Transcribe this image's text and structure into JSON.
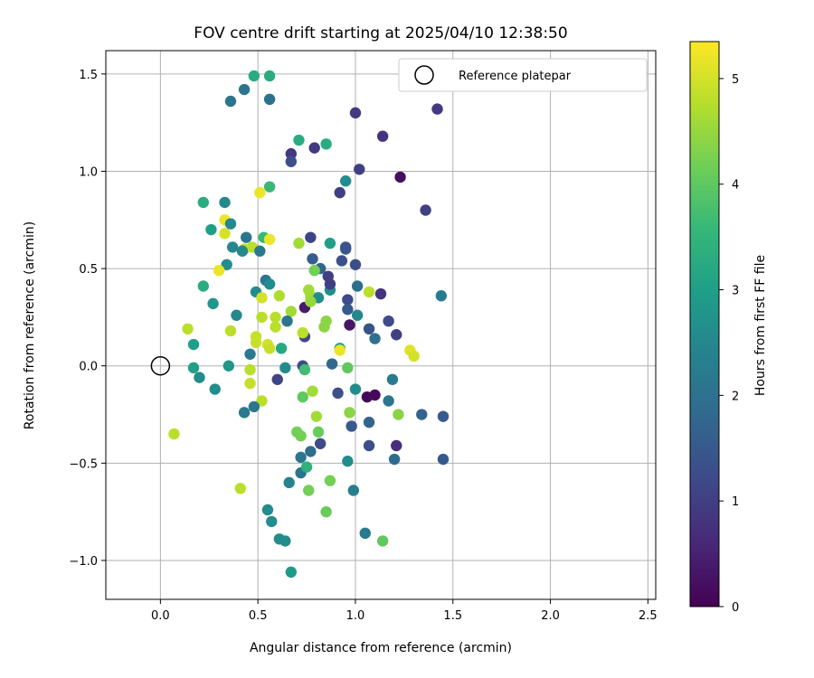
{
  "chart_data": {
    "type": "scatter",
    "title": "FOV centre drift starting at 2025/04/10 12:38:50",
    "xlabel": "Angular distance from reference (arcmin)",
    "ylabel": "Rotation from reference (arcmin)",
    "xlim": [
      -0.28,
      2.54
    ],
    "ylim": [
      -1.2,
      1.62
    ],
    "xticks": [
      0.0,
      0.5,
      1.0,
      1.5,
      2.0,
      2.5
    ],
    "xtick_labels": [
      "0.0",
      "0.5",
      "1.0",
      "1.5",
      "2.0",
      "2.5"
    ],
    "yticks": [
      -1.0,
      -0.5,
      0.0,
      0.5,
      1.0,
      1.5
    ],
    "ytick_labels": [
      "−1.0",
      "−0.5",
      "0.0",
      "0.5",
      "1.0",
      "1.5"
    ],
    "grid": true,
    "legend": {
      "position": "top-right",
      "label": "Reference platepar"
    },
    "reference_point": {
      "x": 0.0,
      "y": 0.0
    },
    "colorbar": {
      "label": "Hours from first FF file",
      "colormap": "viridis",
      "range": [
        0,
        5.35
      ],
      "ticks": [
        0,
        1,
        2,
        3,
        4,
        5
      ],
      "tick_labels": [
        "0",
        "1",
        "2",
        "3",
        "4",
        "5"
      ]
    },
    "points": [
      {
        "x": 0.36,
        "y": 1.36,
        "h": 2.1
      },
      {
        "x": 0.43,
        "y": 1.42,
        "h": 2.1
      },
      {
        "x": 0.48,
        "y": 1.49,
        "h": 3.3
      },
      {
        "x": 0.56,
        "y": 1.49,
        "h": 3.3
      },
      {
        "x": 0.56,
        "y": 1.37,
        "h": 2.0
      },
      {
        "x": 0.71,
        "y": 1.16,
        "h": 3.3
      },
      {
        "x": 0.67,
        "y": 1.09,
        "h": 0.9
      },
      {
        "x": 0.67,
        "y": 1.05,
        "h": 1.3
      },
      {
        "x": 0.79,
        "y": 1.12,
        "h": 0.9
      },
      {
        "x": 0.85,
        "y": 1.14,
        "h": 3.3
      },
      {
        "x": 1.0,
        "y": 1.3,
        "h": 0.9
      },
      {
        "x": 1.14,
        "y": 1.18,
        "h": 0.8
      },
      {
        "x": 1.42,
        "y": 1.32,
        "h": 0.9
      },
      {
        "x": 1.23,
        "y": 0.97,
        "h": 0.2
      },
      {
        "x": 1.02,
        "y": 1.01,
        "h": 1.0
      },
      {
        "x": 0.95,
        "y": 0.95,
        "h": 2.6
      },
      {
        "x": 0.92,
        "y": 0.89,
        "h": 1.0
      },
      {
        "x": 1.36,
        "y": 0.8,
        "h": 1.0
      },
      {
        "x": 0.56,
        "y": 0.92,
        "h": 3.6
      },
      {
        "x": 0.51,
        "y": 0.89,
        "h": 5.2
      },
      {
        "x": 0.22,
        "y": 0.84,
        "h": 3.3
      },
      {
        "x": 0.33,
        "y": 0.84,
        "h": 2.5
      },
      {
        "x": 0.33,
        "y": 0.75,
        "h": 5.2
      },
      {
        "x": 0.36,
        "y": 0.73,
        "h": 2.5
      },
      {
        "x": 0.26,
        "y": 0.7,
        "h": 3.0
      },
      {
        "x": 0.33,
        "y": 0.68,
        "h": 5.0
      },
      {
        "x": 0.44,
        "y": 0.66,
        "h": 2.1
      },
      {
        "x": 0.53,
        "y": 0.66,
        "h": 3.6
      },
      {
        "x": 0.56,
        "y": 0.65,
        "h": 5.2
      },
      {
        "x": 0.37,
        "y": 0.61,
        "h": 2.5
      },
      {
        "x": 0.43,
        "y": 0.6,
        "h": 4.8
      },
      {
        "x": 0.47,
        "y": 0.61,
        "h": 4.8
      },
      {
        "x": 0.42,
        "y": 0.59,
        "h": 2.5
      },
      {
        "x": 0.51,
        "y": 0.59,
        "h": 2.2
      },
      {
        "x": 0.71,
        "y": 0.63,
        "h": 4.6
      },
      {
        "x": 0.77,
        "y": 0.66,
        "h": 1.1
      },
      {
        "x": 0.87,
        "y": 0.63,
        "h": 3.0
      },
      {
        "x": 0.95,
        "y": 0.6,
        "h": 1.5
      },
      {
        "x": 0.95,
        "y": 0.61,
        "h": 1.4
      },
      {
        "x": 0.78,
        "y": 0.55,
        "h": 1.6
      },
      {
        "x": 0.34,
        "y": 0.52,
        "h": 2.6
      },
      {
        "x": 0.3,
        "y": 0.49,
        "h": 5.2
      },
      {
        "x": 0.82,
        "y": 0.5,
        "h": 1.7
      },
      {
        "x": 0.79,
        "y": 0.49,
        "h": 4.2
      },
      {
        "x": 0.86,
        "y": 0.46,
        "h": 1.0
      },
      {
        "x": 0.93,
        "y": 0.54,
        "h": 1.3
      },
      {
        "x": 1.0,
        "y": 0.52,
        "h": 1.3
      },
      {
        "x": 0.22,
        "y": 0.41,
        "h": 3.3
      },
      {
        "x": 0.54,
        "y": 0.44,
        "h": 2.1
      },
      {
        "x": 0.56,
        "y": 0.42,
        "h": 2.6
      },
      {
        "x": 0.49,
        "y": 0.38,
        "h": 2.6
      },
      {
        "x": 0.52,
        "y": 0.35,
        "h": 5.0
      },
      {
        "x": 0.61,
        "y": 0.36,
        "h": 4.7
      },
      {
        "x": 0.76,
        "y": 0.39,
        "h": 4.6
      },
      {
        "x": 0.77,
        "y": 0.36,
        "h": 4.6
      },
      {
        "x": 0.81,
        "y": 0.35,
        "h": 2.6
      },
      {
        "x": 0.87,
        "y": 0.39,
        "h": 2.6
      },
      {
        "x": 0.87,
        "y": 0.42,
        "h": 1.0
      },
      {
        "x": 1.01,
        "y": 0.41,
        "h": 1.9
      },
      {
        "x": 1.07,
        "y": 0.38,
        "h": 4.8
      },
      {
        "x": 1.13,
        "y": 0.37,
        "h": 0.8
      },
      {
        "x": 1.44,
        "y": 0.36,
        "h": 2.2
      },
      {
        "x": 0.27,
        "y": 0.32,
        "h": 2.8
      },
      {
        "x": 0.74,
        "y": 0.3,
        "h": 0.4
      },
      {
        "x": 0.77,
        "y": 0.33,
        "h": 4.5
      },
      {
        "x": 0.67,
        "y": 0.28,
        "h": 4.6
      },
      {
        "x": 0.96,
        "y": 0.34,
        "h": 1.2
      },
      {
        "x": 0.96,
        "y": 0.29,
        "h": 1.5
      },
      {
        "x": 1.01,
        "y": 0.26,
        "h": 2.5
      },
      {
        "x": 0.39,
        "y": 0.26,
        "h": 2.5
      },
      {
        "x": 0.52,
        "y": 0.25,
        "h": 4.8
      },
      {
        "x": 0.59,
        "y": 0.25,
        "h": 4.8
      },
      {
        "x": 0.65,
        "y": 0.23,
        "h": 2.1
      },
      {
        "x": 0.59,
        "y": 0.2,
        "h": 4.8
      },
      {
        "x": 0.84,
        "y": 0.2,
        "h": 4.4
      },
      {
        "x": 0.85,
        "y": 0.23,
        "h": 4.4
      },
      {
        "x": 0.97,
        "y": 0.21,
        "h": 0.3
      },
      {
        "x": 1.07,
        "y": 0.19,
        "h": 1.4
      },
      {
        "x": 1.1,
        "y": 0.14,
        "h": 2.0
      },
      {
        "x": 1.17,
        "y": 0.23,
        "h": 1.2
      },
      {
        "x": 1.21,
        "y": 0.16,
        "h": 1.0
      },
      {
        "x": 0.14,
        "y": 0.19,
        "h": 4.8
      },
      {
        "x": 0.17,
        "y": 0.11,
        "h": 3.0
      },
      {
        "x": 0.36,
        "y": 0.18,
        "h": 4.8
      },
      {
        "x": 0.49,
        "y": 0.15,
        "h": 4.9
      },
      {
        "x": 0.49,
        "y": 0.12,
        "h": 4.9
      },
      {
        "x": 0.55,
        "y": 0.11,
        "h": 5.0
      },
      {
        "x": 0.56,
        "y": 0.09,
        "h": 4.9
      },
      {
        "x": 0.62,
        "y": 0.09,
        "h": 3.2
      },
      {
        "x": 0.74,
        "y": 0.15,
        "h": 1.1
      },
      {
        "x": 0.73,
        "y": 0.17,
        "h": 4.8
      },
      {
        "x": 0.92,
        "y": 0.09,
        "h": 3.0
      },
      {
        "x": 0.92,
        "y": 0.08,
        "h": 5.2
      },
      {
        "x": 0.46,
        "y": 0.06,
        "h": 2.2
      },
      {
        "x": 1.28,
        "y": 0.08,
        "h": 5.1
      },
      {
        "x": 1.3,
        "y": 0.05,
        "h": 5.0
      },
      {
        "x": 0.17,
        "y": -0.01,
        "h": 3.0
      },
      {
        "x": 0.35,
        "y": 0.0,
        "h": 2.8
      },
      {
        "x": 0.64,
        "y": -0.01,
        "h": 2.6
      },
      {
        "x": 0.73,
        "y": 0.0,
        "h": 1.2
      },
      {
        "x": 0.74,
        "y": -0.02,
        "h": 3.7
      },
      {
        "x": 0.88,
        "y": 0.01,
        "h": 1.8
      },
      {
        "x": 0.96,
        "y": -0.01,
        "h": 4.0
      },
      {
        "x": 0.2,
        "y": -0.06,
        "h": 2.6
      },
      {
        "x": 0.46,
        "y": -0.02,
        "h": 4.8
      },
      {
        "x": 0.46,
        "y": -0.09,
        "h": 4.9
      },
      {
        "x": 0.6,
        "y": -0.07,
        "h": 1.1
      },
      {
        "x": 1.19,
        "y": -0.07,
        "h": 2.2
      },
      {
        "x": 0.28,
        "y": -0.12,
        "h": 2.6
      },
      {
        "x": 0.73,
        "y": -0.16,
        "h": 4.0
      },
      {
        "x": 0.78,
        "y": -0.13,
        "h": 4.6
      },
      {
        "x": 0.91,
        "y": -0.14,
        "h": 1.3
      },
      {
        "x": 1.0,
        "y": -0.12,
        "h": 2.6
      },
      {
        "x": 1.06,
        "y": -0.16,
        "h": 0.1
      },
      {
        "x": 1.1,
        "y": -0.15,
        "h": 0.1
      },
      {
        "x": 1.17,
        "y": -0.18,
        "h": 2.1
      },
      {
        "x": 0.52,
        "y": -0.18,
        "h": 4.8
      },
      {
        "x": 0.48,
        "y": -0.21,
        "h": 2.1
      },
      {
        "x": 0.43,
        "y": -0.24,
        "h": 2.2
      },
      {
        "x": 0.97,
        "y": -0.24,
        "h": 4.4
      },
      {
        "x": 1.22,
        "y": -0.25,
        "h": 4.4
      },
      {
        "x": 1.34,
        "y": -0.25,
        "h": 1.7
      },
      {
        "x": 1.45,
        "y": -0.26,
        "h": 1.5
      },
      {
        "x": 0.8,
        "y": -0.26,
        "h": 4.6
      },
      {
        "x": 0.98,
        "y": -0.31,
        "h": 1.5
      },
      {
        "x": 1.07,
        "y": -0.29,
        "h": 1.7
      },
      {
        "x": 0.07,
        "y": -0.35,
        "h": 4.8
      },
      {
        "x": 0.7,
        "y": -0.34,
        "h": 4.2
      },
      {
        "x": 0.72,
        "y": -0.36,
        "h": 4.2
      },
      {
        "x": 0.81,
        "y": -0.34,
        "h": 4.1
      },
      {
        "x": 0.82,
        "y": -0.4,
        "h": 1.2
      },
      {
        "x": 0.77,
        "y": -0.44,
        "h": 1.9
      },
      {
        "x": 1.07,
        "y": -0.41,
        "h": 1.3
      },
      {
        "x": 1.21,
        "y": -0.41,
        "h": 0.7
      },
      {
        "x": 0.72,
        "y": -0.47,
        "h": 2.1
      },
      {
        "x": 0.96,
        "y": -0.49,
        "h": 2.6
      },
      {
        "x": 1.2,
        "y": -0.48,
        "h": 1.9
      },
      {
        "x": 1.45,
        "y": -0.48,
        "h": 1.5
      },
      {
        "x": 0.72,
        "y": -0.55,
        "h": 2.1
      },
      {
        "x": 0.75,
        "y": -0.52,
        "h": 3.4
      },
      {
        "x": 0.66,
        "y": -0.6,
        "h": 2.4
      },
      {
        "x": 0.87,
        "y": -0.59,
        "h": 4.2
      },
      {
        "x": 0.76,
        "y": -0.64,
        "h": 4.2
      },
      {
        "x": 0.99,
        "y": -0.64,
        "h": 2.3
      },
      {
        "x": 0.41,
        "y": -0.63,
        "h": 4.8
      },
      {
        "x": 0.55,
        "y": -0.74,
        "h": 2.6
      },
      {
        "x": 0.85,
        "y": -0.75,
        "h": 4.1
      },
      {
        "x": 0.57,
        "y": -0.8,
        "h": 2.6
      },
      {
        "x": 1.05,
        "y": -0.86,
        "h": 2.2
      },
      {
        "x": 1.14,
        "y": -0.9,
        "h": 4.0
      },
      {
        "x": 0.61,
        "y": -0.89,
        "h": 2.6
      },
      {
        "x": 0.64,
        "y": -0.9,
        "h": 2.6
      },
      {
        "x": 0.67,
        "y": -1.06,
        "h": 2.9
      }
    ]
  }
}
